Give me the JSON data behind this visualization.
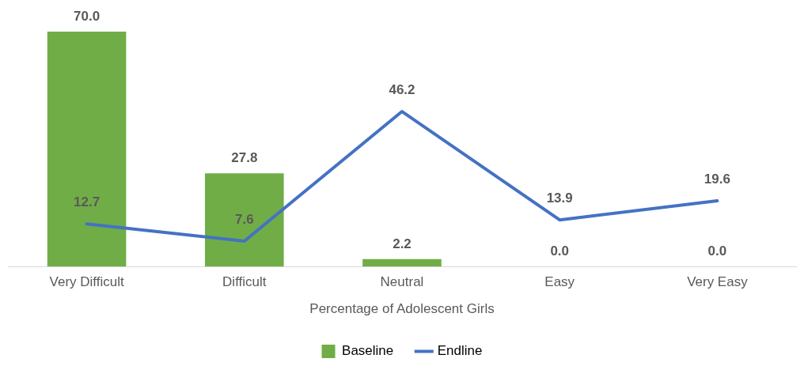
{
  "chart_data": {
    "type": "bar",
    "xlabel": "Percentage of Adolescent Girls",
    "categories": [
      "Very Difficult",
      "Difficult",
      "Neutral",
      "Easy",
      "Very Easy"
    ],
    "series": [
      {
        "name": "Baseline",
        "color": "#70ad47",
        "values": [
          70.0,
          27.8,
          2.2,
          0.0,
          0.0
        ],
        "value_labels": [
          "70.0",
          "27.8",
          "2.2",
          "0.0",
          "0.0"
        ]
      },
      {
        "name": "Endline",
        "type": "line",
        "color": "#4472c4",
        "values": [
          12.7,
          7.6,
          46.2,
          13.9,
          19.6
        ],
        "value_labels": [
          "12.7",
          "7.6",
          "46.2",
          "13.9",
          "19.6"
        ]
      }
    ],
    "grid": false,
    "legend": "bottom",
    "marker": "none"
  }
}
